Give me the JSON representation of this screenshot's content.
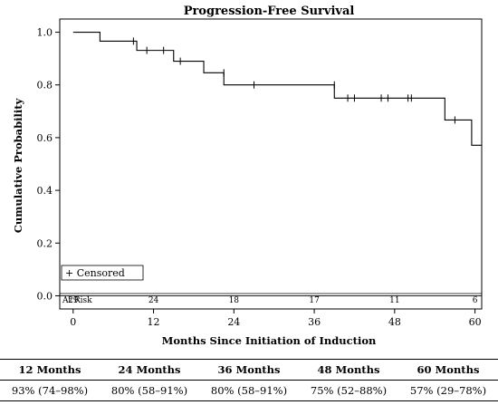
{
  "chart_data": {
    "type": "line",
    "title": "Progression-Free Survival",
    "xlabel": "Months Since Initiation of Induction",
    "ylabel": "Cumulative Probability",
    "xlim": [
      -2,
      61
    ],
    "ylim": [
      -0.05,
      1.05
    ],
    "xticks": [
      0,
      12,
      24,
      36,
      48,
      60
    ],
    "yticks": [
      "0.0",
      "0.2",
      "0.4",
      "0.6",
      "0.8",
      "1.0"
    ],
    "step_curve": [
      [
        0,
        1.0
      ],
      [
        4,
        1.0
      ],
      [
        4,
        0.966
      ],
      [
        9.5,
        0.966
      ],
      [
        9.5,
        0.931
      ],
      [
        15,
        0.931
      ],
      [
        15,
        0.89
      ],
      [
        19.5,
        0.89
      ],
      [
        19.5,
        0.846
      ],
      [
        22.5,
        0.846
      ],
      [
        22.5,
        0.8
      ],
      [
        39,
        0.8
      ],
      [
        39,
        0.75
      ],
      [
        55.5,
        0.75
      ],
      [
        55.5,
        0.667
      ],
      [
        59.5,
        0.667
      ],
      [
        59.5,
        0.571
      ],
      [
        61,
        0.571
      ]
    ],
    "censored": [
      [
        9,
        0.966
      ],
      [
        11,
        0.931
      ],
      [
        13.5,
        0.931
      ],
      [
        16,
        0.89
      ],
      [
        22.5,
        0.846
      ],
      [
        27,
        0.8
      ],
      [
        39,
        0.8
      ],
      [
        41,
        0.75
      ],
      [
        42,
        0.75
      ],
      [
        46,
        0.75
      ],
      [
        47,
        0.75
      ],
      [
        50,
        0.75
      ],
      [
        50.5,
        0.75
      ],
      [
        57,
        0.667
      ],
      [
        61,
        0.571
      ]
    ],
    "legend": {
      "label": "+ Censored",
      "position": "bottom-left"
    },
    "at_risk": {
      "label": "At Risk",
      "values": [
        {
          "x": 0,
          "n": "29"
        },
        {
          "x": 12,
          "n": "24"
        },
        {
          "x": 24,
          "n": "18"
        },
        {
          "x": 36,
          "n": "17"
        },
        {
          "x": 48,
          "n": "11"
        },
        {
          "x": 60,
          "n": "6"
        }
      ]
    }
  },
  "summary_table": {
    "headers": [
      "12 Months",
      "24 Months",
      "36 Months",
      "48 Months",
      "60 Months"
    ],
    "values": [
      "93% (74–98%)",
      "80% (58–91%)",
      "80% (58–91%)",
      "75% (52–88%)",
      "57% (29–78%)"
    ]
  }
}
